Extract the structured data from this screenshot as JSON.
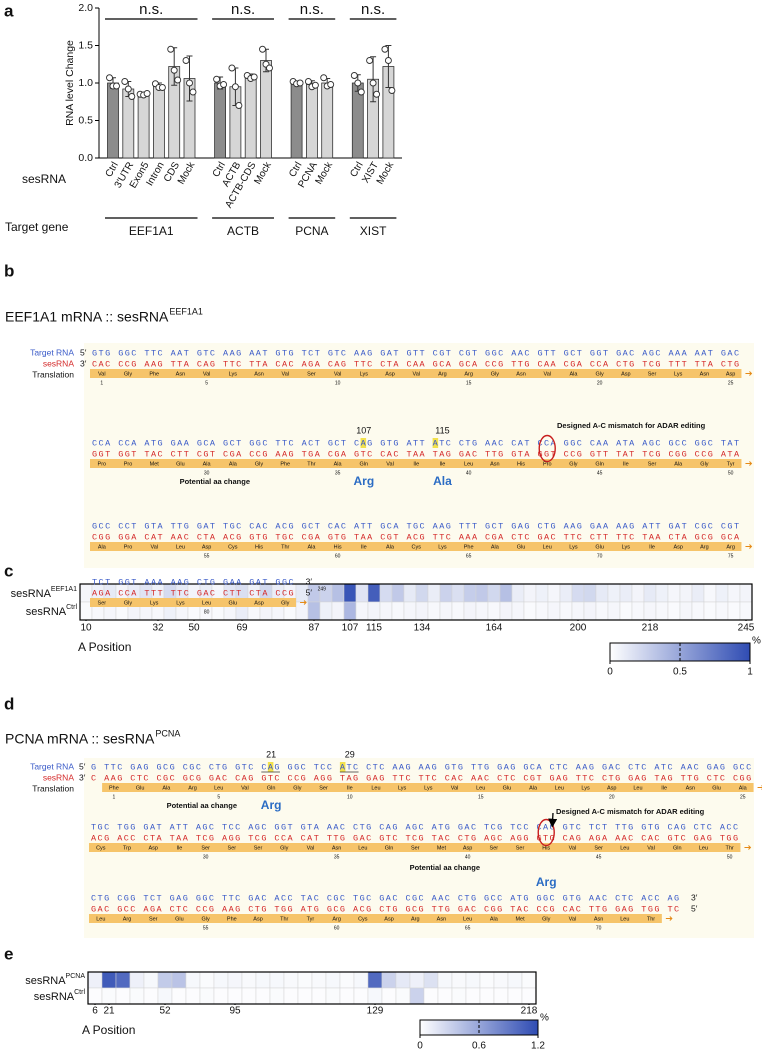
{
  "panel_labels": [
    "a",
    "b",
    "c",
    "d",
    "e"
  ],
  "chart_data": [
    {
      "type": "bar",
      "ylabel": "RNA level Change",
      "xlabel": "sesRNA",
      "group_label": "Target gene",
      "annotation": "n.s.",
      "ylim": [
        0,
        2
      ],
      "yticks": [
        {
          "value": 0,
          "label": "0.0"
        },
        0.5,
        {
          "value": 1,
          "label": "1.0"
        },
        1.5,
        {
          "value": 2,
          "label": "2.0"
        }
      ],
      "groups": [
        {
          "name": "EEF1A1",
          "categories": [
            "Ctrl",
            "3'UTR",
            "Exon5",
            "Intron",
            "CDS",
            "Mock"
          ],
          "colors": [
            "#8c8c8c",
            "#d6d6d6",
            "#d6d6d6",
            "#d6d6d6",
            "#d6d6d6",
            "#d6d6d6"
          ],
          "values": [
            1.0,
            0.92,
            0.85,
            0.96,
            1.22,
            1.06
          ],
          "errors": [
            0.07,
            0.1,
            0.02,
            0.04,
            0.25,
            0.3
          ],
          "points": [
            [
              1.07,
              0.96,
              0.96
            ],
            [
              1.02,
              0.92,
              0.82
            ],
            [
              0.85,
              0.84,
              0.86
            ],
            [
              0.99,
              0.94,
              0.94
            ],
            [
              1.45,
              1.17,
              1.04
            ],
            [
              1.3,
              1.0,
              0.88
            ]
          ]
        },
        {
          "name": "ACTB",
          "categories": [
            "Ctrl",
            "ACTB",
            "ACTB-CDS",
            "Mock"
          ],
          "colors": [
            "#8c8c8c",
            "#d6d6d6",
            "#d6d6d6",
            "#d6d6d6"
          ],
          "values": [
            1.0,
            0.95,
            1.08,
            1.3
          ],
          "errors": [
            0.08,
            0.25,
            0.04,
            0.15
          ],
          "points": [
            [
              1.05,
              0.96,
              0.98
            ],
            [
              1.2,
              0.95,
              0.7
            ],
            [
              1.1,
              1.06,
              1.08
            ],
            [
              1.45,
              1.25,
              1.2
            ]
          ]
        },
        {
          "name": "PCNA",
          "categories": [
            "Ctrl",
            "PCNA",
            "Mock"
          ],
          "colors": [
            "#8c8c8c",
            "#d6d6d6",
            "#d6d6d6"
          ],
          "values": [
            1.0,
            0.98,
            1.0
          ],
          "errors": [
            0.02,
            0.05,
            0.06
          ],
          "points": [
            [
              1.02,
              0.99,
              1.0
            ],
            [
              1.02,
              0.95,
              0.97
            ],
            [
              1.07,
              0.96,
              0.98
            ]
          ]
        },
        {
          "name": "XIST",
          "categories": [
            "Ctrl",
            "XIST",
            "Mock"
          ],
          "colors": [
            "#8c8c8c",
            "#d6d6d6",
            "#d6d6d6"
          ],
          "values": [
            1.0,
            1.05,
            1.22
          ],
          "errors": [
            0.11,
            0.3,
            0.28
          ],
          "points": [
            [
              1.1,
              1.0,
              0.88
            ],
            [
              1.3,
              1.0,
              0.85
            ],
            [
              1.45,
              1.3,
              0.9
            ]
          ]
        }
      ]
    },
    {
      "type": "heatmap",
      "xlabel": "A Position",
      "xlim": [
        0,
        56
      ],
      "xticks": [
        {
          "value": 0.5,
          "label": "10"
        },
        {
          "value": 6.5,
          "label": "32"
        },
        {
          "value": 9.5,
          "label": "50"
        },
        {
          "value": 13.5,
          "label": "69"
        },
        {
          "value": 19.5,
          "label": "87"
        },
        {
          "value": 22.5,
          "label": "107"
        },
        {
          "value": 24.5,
          "label": "115"
        },
        {
          "value": 28.5,
          "label": "134"
        },
        {
          "value": 34.5,
          "label": "164"
        },
        {
          "value": 41.5,
          "label": "200"
        },
        {
          "value": 47.5,
          "label": "218"
        },
        {
          "value": 55.5,
          "label": "245"
        }
      ],
      "rows": [
        {
          "name": "sesRNA",
          "sup": "EEF1A1",
          "values": [
            0.05,
            0.08,
            0.12,
            0.06,
            0.1,
            0.15,
            0.08,
            0.2,
            0.12,
            0.06,
            0.1,
            0.05,
            0.14,
            0.18,
            0.08,
            0.22,
            0.1,
            0.06,
            0.12,
            0.3,
            0.25,
            0.35,
            0.95,
            0.15,
            0.9,
            0.2,
            0.3,
            0.12,
            0.22,
            0.1,
            0.25,
            0.18,
            0.28,
            0.3,
            0.22,
            0.35,
            0.1,
            0.06,
            0.08,
            0.05,
            0.1,
            0.2,
            0.22,
            0.12,
            0.08,
            0.1,
            0.06,
            0.12,
            0.08,
            0.05,
            0.06,
            0.1,
            0.04,
            0.08,
            0.05,
            0.06
          ]
        },
        {
          "name": "sesRNA",
          "sup": "Ctrl",
          "values": [
            0.03,
            0.04,
            0.05,
            0.03,
            0.06,
            0.05,
            0.04,
            0.08,
            0.05,
            0.03,
            0.04,
            0.03,
            0.05,
            0.1,
            0.04,
            0.06,
            0.05,
            0.03,
            0.06,
            0.35,
            0.08,
            0.06,
            0.4,
            0.05,
            0.06,
            0.05,
            0.04,
            0.05,
            0.06,
            0.04,
            0.05,
            0.04,
            0.06,
            0.05,
            0.04,
            0.06,
            0.05,
            0.03,
            0.04,
            0.05,
            0.04,
            0.05,
            0.06,
            0.04,
            0.05,
            0.03,
            0.04,
            0.05,
            0.04,
            0.03,
            0.05,
            0.04,
            0.03,
            0.04,
            0.03,
            0.04
          ]
        }
      ],
      "colorbar": {
        "lim": [
          0,
          1
        ],
        "ticks": [
          0,
          0.5,
          1
        ],
        "unit": "%",
        "colors": [
          "#ffffff",
          "#2f4cb3"
        ]
      }
    },
    {
      "type": "heatmap",
      "xlabel": "A Position",
      "xlim": [
        0,
        32
      ],
      "xticks": [
        {
          "value": 0.5,
          "label": "6"
        },
        {
          "value": 1.5,
          "label": "21"
        },
        {
          "value": 5.5,
          "label": "52"
        },
        {
          "value": 10.5,
          "label": "95"
        },
        {
          "value": 20.5,
          "label": "129"
        },
        {
          "value": 31.5,
          "label": "218"
        }
      ],
      "rows": [
        {
          "name": "sesRNA",
          "sup": "PCNA",
          "values": [
            0.1,
            1.1,
            1.0,
            0.1,
            0.05,
            0.35,
            0.4,
            0.05,
            0.03,
            0.05,
            0.06,
            0.04,
            0.05,
            0.05,
            0.04,
            0.03,
            0.04,
            0.05,
            0.03,
            0.05,
            1.0,
            0.3,
            0.15,
            0.1,
            0.2,
            0.05,
            0.04,
            0.05,
            0.03,
            0.04,
            0.05,
            0.03
          ]
        },
        {
          "name": "sesRNA",
          "sup": "Ctrl",
          "values": [
            0.02,
            0.03,
            0.02,
            0.03,
            0.02,
            0.05,
            0.02,
            0.02,
            0.03,
            0.02,
            0.02,
            0.02,
            0.02,
            0.03,
            0.02,
            0.02,
            0.02,
            0.03,
            0.02,
            0.02,
            0.05,
            0.02,
            0.03,
            0.3,
            0.02,
            0.02,
            0.03,
            0.02,
            0.02,
            0.02,
            0.02,
            0.02
          ]
        }
      ],
      "colorbar": {
        "lim": [
          0,
          1.2
        ],
        "ticks": [
          0,
          0.6,
          1.2
        ],
        "unit": "%",
        "colors": [
          "#ffffff",
          "#2f4cb3"
        ]
      }
    }
  ],
  "sequence_b": {
    "title": "EEF1A1 mRNA :: sesRNA",
    "title_sup": "EEF1A1",
    "row_labels": [
      "Target RNA",
      "sesRNA",
      "Translation"
    ],
    "five_end": "5′",
    "three_end": "3′",
    "end_number": 249,
    "blocks": [
      {
        "target": "GTG GGC TTC AAT GTC AAG AAT GTG TCT GTC AAG GAT GTT CGT CGT GGC AAC GTT GCT GGT GAC AGC AAA AAT GAC",
        "sesrna": "CAC CCG AAG TTA CAG TTC TTA CAC AGA CAG TTC CTA CAA GCA GCA CCG TTG CAA CGA CCA CTG TCG TTT TTA CTG",
        "translation": [
          "Val",
          "Gly",
          "Phe",
          "Asn",
          "Val",
          "Lys",
          "Asn",
          "Val",
          "Ser",
          "Val",
          "Lys",
          "Asp",
          "Val",
          "Arg",
          "Arg",
          "Gly",
          "Asn",
          "Val",
          "Ala",
          "Gly",
          "Asp",
          "Ser",
          "Lys",
          "Asn",
          "Asp"
        ],
        "numbers": [
          1,
          5,
          10,
          15,
          20,
          25
        ]
      },
      {
        "target": "CCA CCA ATG GAA GCA GCT GGC TTC ACT GCT CAG GTG ATT ATC CTG AAC CAT CCA GGC CAA ATA AGC GCC GGC TAT",
        "sesrna": "GGT GGT TAC CTT CGT CGA CCG AAG TGA CGA GTC CAC TAA TAG GAC TTG GTA GGT CCG GTT TAT TCG CGG CCG ATA",
        "translation": [
          "Pro",
          "Pro",
          "Met",
          "Glu",
          "Ala",
          "Ala",
          "Gly",
          "Phe",
          "Thr",
          "Ala",
          "Gln",
          "Val",
          "Ile",
          "Ile",
          "Leu",
          "Asn",
          "His",
          "Pro",
          "Gly",
          "Gln",
          "Ile",
          "Ser",
          "Ala",
          "Gly",
          "Tyr"
        ],
        "numbers": [
          30,
          35,
          40,
          45,
          50
        ]
      },
      {
        "target": "GCC CCT GTA TTG GAT TGC CAC ACG GCT CAC ATT GCA TGC AAG TTT GCT GAG CTG AAG GAA AAG ATT GAT CGC CGT",
        "sesrna": "CGG GGA CAT AAC CTA ACG GTG TGC CGA GTG TAA CGT ACG TTC AAA CGA CTC GAC TTC CTT TTC TAA CTA GCG GCA",
        "translation": [
          "Ala",
          "Pro",
          "Val",
          "Leu",
          "Asp",
          "Cys",
          "His",
          "Thr",
          "Ala",
          "His",
          "Ile",
          "Ala",
          "Cys",
          "Lys",
          "Phe",
          "Ala",
          "Glu",
          "Leu",
          "Lys",
          "Glu",
          "Lys",
          "Ile",
          "Asp",
          "Arg",
          "Arg"
        ],
        "numbers": [
          55,
          60,
          65,
          70,
          75
        ]
      },
      {
        "target": "TCT GGT AAA AAG CTG GAA GAT GGC",
        "sesrna": "AGA CCA TTT TTC GAC CTT CTA CCG",
        "translation": [
          "Ser",
          "Gly",
          "Lys",
          "Lys",
          "Leu",
          "Glu",
          "Asp",
          "Gly"
        ],
        "numbers": [
          80
        ]
      }
    ],
    "annotations": {
      "sites": [
        107,
        115
      ],
      "mismatch": "Designed A-C mismatch for ADAR editing",
      "aa_change": "Potential aa change",
      "new_aa": [
        "Arg",
        "Ala"
      ]
    }
  },
  "sequence_d": {
    "title": "PCNA mRNA :: sesRNA",
    "title_sup": "PCNA",
    "row_labels": [
      "Target RNA",
      "sesRNA",
      "Translation"
    ],
    "five_end": "5′",
    "three_end": "3′",
    "blocks": [
      {
        "target": "G TTC GAG GCG CGC CTG GTC CAG GGC TCC ATC CTC AAG AAG GTG TTG GAG GCA CTC AAG GAC CTC ATC AAC GAG GCC",
        "sesrna": "C AAG CTC CGC GCG GAC CAG GTC CCG AGG TAG GAG TTC TTC CAC AAC CTC CGT GAG TTC CTG GAG TAG TTG CTC CGG",
        "translation": [
          "Phe",
          "Glu",
          "Ala",
          "Arg",
          "Leu",
          "Val",
          "Gln",
          "Gly",
          "Ser",
          "Ile",
          "Leu",
          "Lys",
          "Lys",
          "Val",
          "Leu",
          "Glu",
          "Ala",
          "Leu",
          "Lys",
          "Asp",
          "Leu",
          "Ile",
          "Asn",
          "Glu",
          "Ala"
        ],
        "numbers": [
          1,
          5,
          10,
          15,
          20,
          25
        ]
      },
      {
        "target": "TGC TGG GAT ATT AGC TCC AGC GGT GTA AAC CTG CAG AGC ATG GAC TCG TCC CAC GTC TCT TTG GTG CAG CTC ACC",
        "sesrna": "ACG ACC CTA TAA TCG AGG TCG CCA CAT TTG GAC GTC TCG TAC CTG AGC AGG GTG CAG AGA AAC CAC GTC GAG TGG",
        "translation": [
          "Cys",
          "Trp",
          "Asp",
          "Ile",
          "Ser",
          "Ser",
          "Ser",
          "Gly",
          "Val",
          "Asn",
          "Leu",
          "Gln",
          "Ser",
          "Met",
          "Asp",
          "Ser",
          "Ser",
          "His",
          "Val",
          "Ser",
          "Leu",
          "Val",
          "Gln",
          "Leu",
          "Thr"
        ],
        "numbers": [
          30,
          35,
          40,
          45,
          50
        ]
      },
      {
        "target": "CTG CGG TCT GAG GGC TTC GAC ACC TAC CGC TGC GAC CGC AAC CTG GCC ATG GGC GTG AAC CTC ACC AG",
        "sesrna": "GAC GCC AGA CTC CCG AAG CTG TGG ATG GCG ACG CTG GCG TTG GAC CGG TAC CCG CAC TTG GAG TGG TC",
        "translation": [
          "Leu",
          "Arg",
          "Ser",
          "Glu",
          "Gly",
          "Phe",
          "Asp",
          "Thr",
          "Tyr",
          "Arg",
          "Cys",
          "Asp",
          "Arg",
          "Asn",
          "Leu",
          "Ala",
          "Met",
          "Gly",
          "Val",
          "Asn",
          "Leu",
          "Thr"
        ],
        "numbers": [
          55,
          60,
          65,
          70
        ]
      }
    ],
    "annotations": {
      "sites": [
        21,
        29
      ],
      "mismatch": "Designed A-C mismatch for ADAR editing",
      "aa_change": "Potential aa change",
      "new_aa": [
        "Arg",
        "Arg"
      ]
    }
  }
}
